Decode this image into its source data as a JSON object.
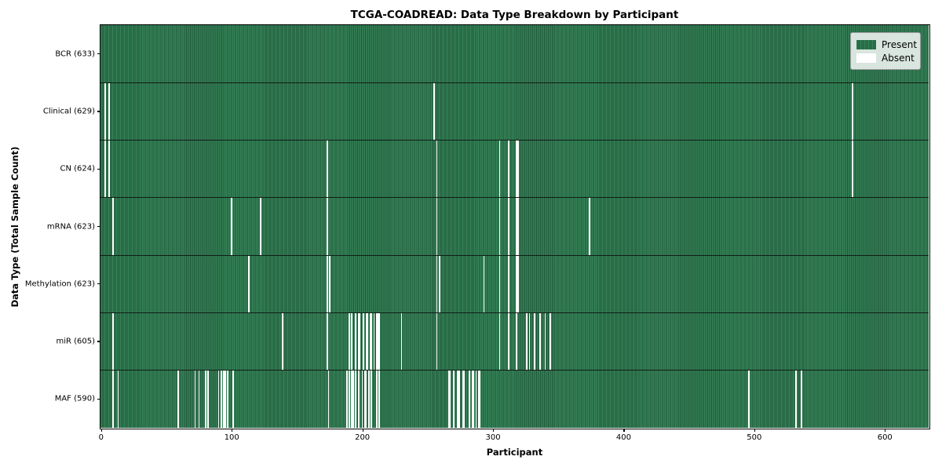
{
  "figure": {
    "title": "TCGA-COADREAD: Data Type Breakdown by Participant",
    "xlabel": "Participant",
    "ylabel": "Data Type (Total Sample Count)"
  },
  "legend": {
    "items": [
      {
        "label": "Present",
        "color": "#2e8256"
      },
      {
        "label": "Absent",
        "color": "#ffffff"
      }
    ]
  },
  "chart_data": {
    "type": "heatmap",
    "title": "TCGA-COADREAD: Data Type Breakdown by Participant",
    "xlabel": "Participant",
    "ylabel": "Data Type (Total Sample Count)",
    "legend_entries": [
      "Present",
      "Absent"
    ],
    "legend_position": "upper right",
    "grid": false,
    "n_participants": 633,
    "x_range": [
      -0.5,
      633.5
    ],
    "x_ticks": [
      0,
      100,
      200,
      300,
      400,
      500,
      600
    ],
    "colors": {
      "present_fill": "#358257",
      "present_edge": "#20573a",
      "absent_fill": "#ffffff",
      "row_separator": "#101d14",
      "background": "#ffffff"
    },
    "rows": [
      {
        "label": "BCR",
        "count": 633,
        "tick_label": "BCR (633)",
        "absent_participants": []
      },
      {
        "label": "Clinical",
        "count": 629,
        "tick_label": "Clinical (629)",
        "absent_participants": [
          3,
          6,
          255,
          575
        ]
      },
      {
        "label": "CN",
        "count": 624,
        "tick_label": "CN (624)",
        "absent_participants": [
          3,
          6,
          173,
          257,
          305,
          312,
          318,
          319,
          575
        ]
      },
      {
        "label": "mRNA",
        "count": 623,
        "tick_label": "mRNA (623)",
        "absent_participants": [
          9,
          100,
          122,
          173,
          257,
          305,
          312,
          318,
          319,
          374
        ]
      },
      {
        "label": "Methylation",
        "count": 623,
        "tick_label": "Methylation (623)",
        "absent_participants": [
          113,
          173,
          175,
          257,
          259,
          293,
          305,
          312,
          318,
          319
        ]
      },
      {
        "label": "miR",
        "count": 605,
        "tick_label": "miR (605)",
        "absent_participants": [
          9,
          139,
          173,
          190,
          192,
          195,
          197,
          198,
          201,
          203,
          204,
          206,
          207,
          209,
          211,
          212,
          213,
          230,
          257,
          305,
          312,
          318,
          326,
          328,
          332,
          336,
          340,
          344
        ]
      },
      {
        "label": "MAF",
        "count": 590,
        "tick_label": "MAF (590)",
        "absent_participants": [
          9,
          13,
          59,
          72,
          75,
          80,
          82,
          90,
          92,
          94,
          95,
          97,
          101,
          174,
          188,
          190,
          192,
          193,
          195,
          197,
          200,
          202,
          203,
          205,
          207,
          211,
          213,
          266,
          267,
          270,
          273,
          274,
          277,
          278,
          282,
          284,
          285,
          287,
          289,
          290,
          496,
          532,
          536
        ]
      }
    ]
  }
}
